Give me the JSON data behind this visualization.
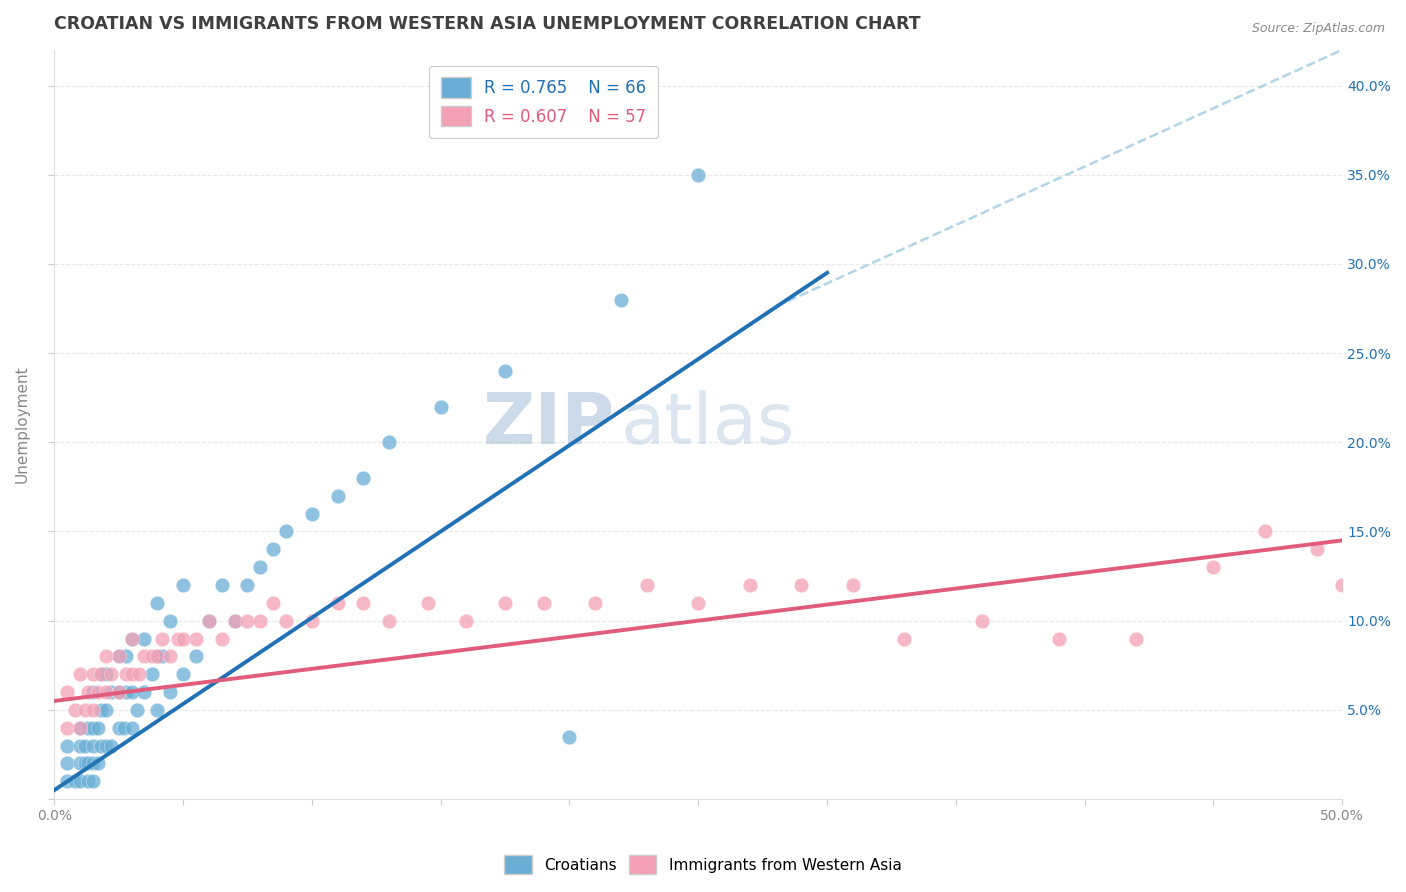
{
  "title": "CROATIAN VS IMMIGRANTS FROM WESTERN ASIA UNEMPLOYMENT CORRELATION CHART",
  "source": "Source: ZipAtlas.com",
  "ylabel": "Unemployment",
  "xlim": [
    0.0,
    0.5
  ],
  "ylim": [
    0.0,
    0.42
  ],
  "xticks": [
    0.0,
    0.05,
    0.1,
    0.15,
    0.2,
    0.25,
    0.3,
    0.35,
    0.4,
    0.45,
    0.5
  ],
  "yticks": [
    0.0,
    0.05,
    0.1,
    0.15,
    0.2,
    0.25,
    0.3,
    0.35,
    0.4
  ],
  "blue_color": "#6aaed6",
  "pink_color": "#f4a0b5",
  "blue_line_color": "#2171b5",
  "pink_line_color": "#e05c7a",
  "dashed_line_color": "#9ecae1",
  "legend_R_blue": "R = 0.765",
  "legend_N_blue": "N = 66",
  "legend_R_pink": "R = 0.607",
  "legend_N_pink": "N = 57",
  "watermark_zip": "ZIP",
  "watermark_atlas": "atlas",
  "blue_scatter_x": [
    0.005,
    0.005,
    0.005,
    0.008,
    0.01,
    0.01,
    0.01,
    0.01,
    0.012,
    0.012,
    0.013,
    0.013,
    0.013,
    0.015,
    0.015,
    0.015,
    0.015,
    0.015,
    0.017,
    0.017,
    0.018,
    0.018,
    0.018,
    0.02,
    0.02,
    0.02,
    0.022,
    0.022,
    0.025,
    0.025,
    0.025,
    0.027,
    0.028,
    0.028,
    0.03,
    0.03,
    0.03,
    0.032,
    0.035,
    0.035,
    0.038,
    0.04,
    0.04,
    0.04,
    0.042,
    0.045,
    0.045,
    0.05,
    0.05,
    0.055,
    0.06,
    0.065,
    0.07,
    0.075,
    0.08,
    0.085,
    0.09,
    0.1,
    0.11,
    0.12,
    0.13,
    0.15,
    0.175,
    0.2,
    0.22,
    0.25
  ],
  "blue_scatter_y": [
    0.01,
    0.02,
    0.03,
    0.01,
    0.01,
    0.02,
    0.03,
    0.04,
    0.02,
    0.03,
    0.01,
    0.02,
    0.04,
    0.01,
    0.02,
    0.03,
    0.04,
    0.06,
    0.02,
    0.04,
    0.03,
    0.05,
    0.07,
    0.03,
    0.05,
    0.07,
    0.03,
    0.06,
    0.04,
    0.06,
    0.08,
    0.04,
    0.06,
    0.08,
    0.04,
    0.06,
    0.09,
    0.05,
    0.06,
    0.09,
    0.07,
    0.05,
    0.08,
    0.11,
    0.08,
    0.06,
    0.1,
    0.07,
    0.12,
    0.08,
    0.1,
    0.12,
    0.1,
    0.12,
    0.13,
    0.14,
    0.15,
    0.16,
    0.17,
    0.18,
    0.2,
    0.22,
    0.24,
    0.035,
    0.28,
    0.35
  ],
  "pink_scatter_x": [
    0.005,
    0.005,
    0.008,
    0.01,
    0.01,
    0.012,
    0.013,
    0.015,
    0.015,
    0.017,
    0.018,
    0.02,
    0.02,
    0.022,
    0.025,
    0.025,
    0.028,
    0.03,
    0.03,
    0.033,
    0.035,
    0.038,
    0.04,
    0.042,
    0.045,
    0.048,
    0.05,
    0.055,
    0.06,
    0.065,
    0.07,
    0.075,
    0.08,
    0.085,
    0.09,
    0.1,
    0.11,
    0.12,
    0.13,
    0.145,
    0.16,
    0.175,
    0.19,
    0.21,
    0.23,
    0.25,
    0.27,
    0.29,
    0.31,
    0.33,
    0.36,
    0.39,
    0.42,
    0.45,
    0.47,
    0.49,
    0.5
  ],
  "pink_scatter_y": [
    0.04,
    0.06,
    0.05,
    0.04,
    0.07,
    0.05,
    0.06,
    0.05,
    0.07,
    0.06,
    0.07,
    0.06,
    0.08,
    0.07,
    0.06,
    0.08,
    0.07,
    0.07,
    0.09,
    0.07,
    0.08,
    0.08,
    0.08,
    0.09,
    0.08,
    0.09,
    0.09,
    0.09,
    0.1,
    0.09,
    0.1,
    0.1,
    0.1,
    0.11,
    0.1,
    0.1,
    0.11,
    0.11,
    0.1,
    0.11,
    0.1,
    0.11,
    0.11,
    0.11,
    0.12,
    0.11,
    0.12,
    0.12,
    0.12,
    0.09,
    0.1,
    0.09,
    0.09,
    0.13,
    0.15,
    0.14,
    0.12
  ],
  "blue_trend_x": [
    0.0,
    0.3
  ],
  "blue_trend_y": [
    0.005,
    0.295
  ],
  "pink_trend_x": [
    0.0,
    0.5
  ],
  "pink_trend_y": [
    0.055,
    0.145
  ],
  "dashed_trend_x": [
    0.28,
    0.5
  ],
  "dashed_trend_y": [
    0.276,
    0.42
  ],
  "background_color": "#ffffff",
  "grid_color": "#e8e8e8",
  "title_color": "#404040",
  "axis_color": "#888888",
  "tick_label_color_blue": "#2171b5",
  "title_fontsize": 12.5,
  "label_fontsize": 11,
  "tick_fontsize": 10,
  "legend_fontsize": 12,
  "watermark_color_zip": "#c8d4e8",
  "watermark_color_atlas": "#b8cce0",
  "watermark_fontsize": 52
}
